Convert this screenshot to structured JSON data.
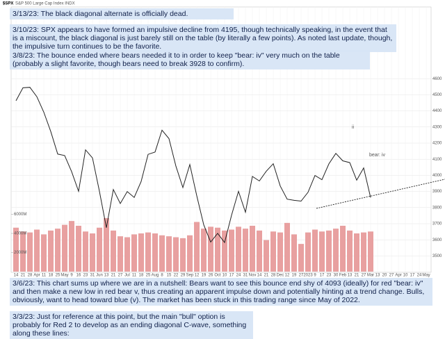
{
  "chart_data": {
    "type": "line",
    "title": "$SPX",
    "subtitle": "S&P 500 Large Cap Index  INDX",
    "categories": [
      "14",
      "21",
      "28",
      "Apr",
      "11",
      "18",
      "25",
      "May",
      "9",
      "16",
      "23",
      "31",
      "Jun",
      "13",
      "21",
      "27",
      "Jul",
      "11",
      "18",
      "25",
      "Aug",
      "8",
      "15",
      "22",
      "29",
      "Sep",
      "12",
      "19",
      "26",
      "Oct",
      "10",
      "17",
      "24",
      "31",
      "Nov",
      "14",
      "21",
      "28",
      "Dec",
      "12",
      "19",
      "27",
      "2023",
      "9",
      "17",
      "23",
      "30",
      "Feb",
      "13",
      "21",
      "27",
      "Mar",
      "13",
      "20",
      "27",
      "Apr",
      "10",
      "17",
      "24",
      "May"
    ],
    "series": [
      {
        "name": "$SPX",
        "color": "#222222",
        "values": [
          4463,
          4543,
          4546,
          4488,
          4392,
          4272,
          4132,
          4123,
          4023,
          3901,
          4158,
          4108,
          3901,
          3675,
          3912,
          3825,
          3899,
          3863,
          3962,
          4130,
          4145,
          4280,
          4228,
          4057,
          3924,
          4067,
          3873,
          3693,
          3586,
          3640,
          3583,
          3752,
          3901,
          3771,
          3993,
          3965,
          4026,
          4072,
          3934,
          3852,
          3845,
          3840,
          3895,
          3999,
          3973,
          4071,
          4136,
          4090,
          4079,
          3970,
          4046,
          3862,
          null,
          null,
          null,
          null,
          null,
          null,
          null,
          null
        ]
      },
      {
        "name": "Volume",
        "color": "#e8a0a0",
        "axis": "y2",
        "values": [
          4600,
          4200,
          4100,
          4400,
          3900,
          4300,
          4500,
          4900,
          5300,
          4800,
          4200,
          4000,
          4600,
          5600,
          4300,
          3700,
          3600,
          3900,
          4000,
          4100,
          4000,
          3800,
          3700,
          3600,
          3500,
          3800,
          5200,
          4500,
          4700,
          4600,
          4300,
          4400,
          4700,
          4500,
          4800,
          4300,
          3300,
          4200,
          4100,
          5100,
          3900,
          2900,
          4100,
          4400,
          4200,
          4300,
          4500,
          4800,
          4300,
          4000,
          4100,
          4200,
          null,
          null,
          null,
          null,
          null,
          null,
          null,
          null
        ]
      }
    ],
    "ylim": [
      3450,
      4700
    ],
    "yticks": [
      3500,
      3600,
      3700,
      3800,
      3900,
      4000,
      4100,
      4200,
      4300,
      4400,
      4500,
      4600
    ],
    "y2lim": [
      0,
      8000
    ],
    "y2ticks": [
      {
        "value": 2000,
        "label": "2000M"
      },
      {
        "value": 4000,
        "label": "4000M"
      },
      {
        "value": 6000,
        "label": "6000M"
      }
    ],
    "grid": true,
    "annotations": [
      "bear: iv",
      "ii"
    ],
    "annotation_color": "#dd0000"
  },
  "notes": [
    "3/13/23:  The black diagonal alternate is officially dead.",
    "3/10/23:  SPX appears to have formed an impulsive decline from 4195, though technically speaking, in the event that is a miscount, the black diagonal is just barely still on the table (by literally a few points).  As noted last update, though, the impulsive turn continues to be the favorite.",
    "3/8/23:  The bounce ended where bears needed it to in order to keep \"bear: iv\" very much on the table (probably a slight favorite, though bears need to break 3928 to confirm).",
    "3/6/23:  This chart sums up where we are in a nutshell:  Bears want to see this bounce end shy of 4093 (ideally) for red \"bear: iv\" and then make a new low in red bear v, thus creating an apparent impulse down and potentially hinting at a trend change.  Bulls, obviously, want to head toward blue (v).  The market has been stuck in this trading range since May of 2022.",
    "3/3/23:  Just for reference at this point, but the main \"bull\" option is probably for Red 2 to develop as an ending diagonal C-wave, something along these lines:"
  ]
}
